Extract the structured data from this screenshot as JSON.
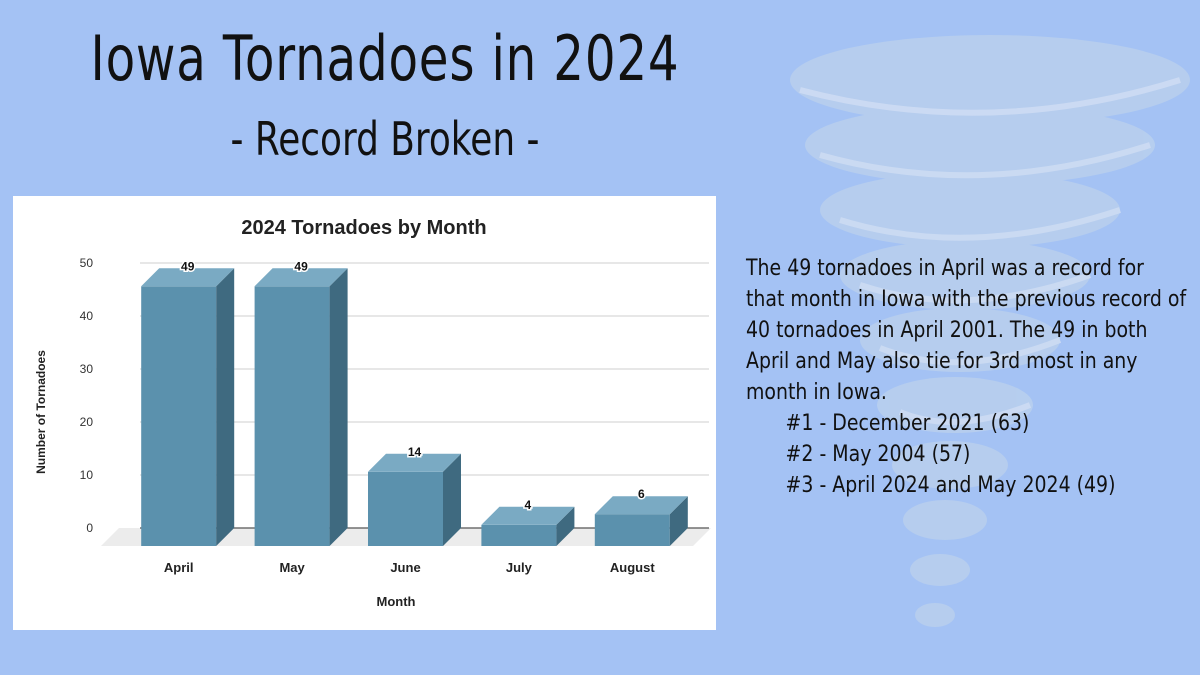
{
  "slide": {
    "title": "Iowa Tornadoes in 2024",
    "subtitle": "- Record Broken -"
  },
  "note": {
    "paragraph": "The 49 tornadoes in April was a record for that month in Iowa with the previous record of 40 tornadoes in April 2001. The 49 in both April and May also tie for 3rd most in any month in Iowa.",
    "rankings": [
      "#1 - December 2021 (63)",
      "#2 - May 2004 (57)",
      "#3 - April 2024 and May 2024 (49)"
    ]
  },
  "colors": {
    "background": "#a4c2f4",
    "bar_front": "#5b91ad",
    "bar_top": "#7aaac3",
    "bar_side": "#3f6a80"
  },
  "chart_data": {
    "type": "bar",
    "title": "2024 Tornadoes by Month",
    "xlabel": "Month",
    "ylabel": "Number of Tornadoes",
    "categories": [
      "April",
      "May",
      "June",
      "July",
      "August"
    ],
    "values": [
      49,
      49,
      14,
      4,
      6
    ],
    "data_labels": [
      "49",
      "49",
      "14",
      "4",
      "6"
    ],
    "yticks": [
      "0",
      "10",
      "20",
      "30",
      "40",
      "50"
    ],
    "ylim": [
      0,
      50
    ],
    "grid": true,
    "legend": "none",
    "style": "3d"
  }
}
